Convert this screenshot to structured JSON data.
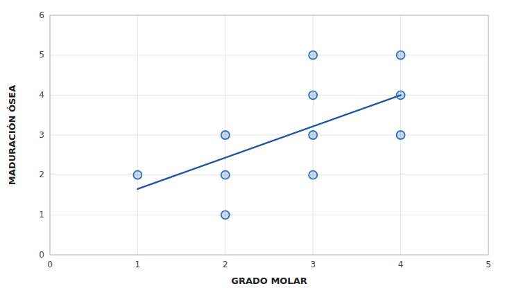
{
  "chart_data": {
    "type": "scatter",
    "xlabel": "GRADO MOLAR",
    "ylabel": "MADURACIÓN ÓSEA",
    "series": [
      {
        "type": "scatter",
        "x": [
          1,
          2,
          2,
          2,
          3,
          3,
          3,
          3,
          4,
          4,
          4
        ],
        "values": [
          2,
          1,
          2,
          3,
          2,
          3,
          4,
          5,
          3,
          4,
          5
        ],
        "color": "#3070b8"
      },
      {
        "type": "line",
        "x": [
          1,
          4
        ],
        "values": [
          1.65,
          4.0
        ],
        "color": "#2255a0"
      }
    ],
    "xlim": [
      0,
      5
    ],
    "ylim": [
      0,
      6
    ],
    "xticks": [
      0,
      1,
      2,
      3,
      4,
      5
    ],
    "yticks": [
      0,
      1,
      2,
      3,
      4,
      5,
      6
    ],
    "grid": true
  }
}
